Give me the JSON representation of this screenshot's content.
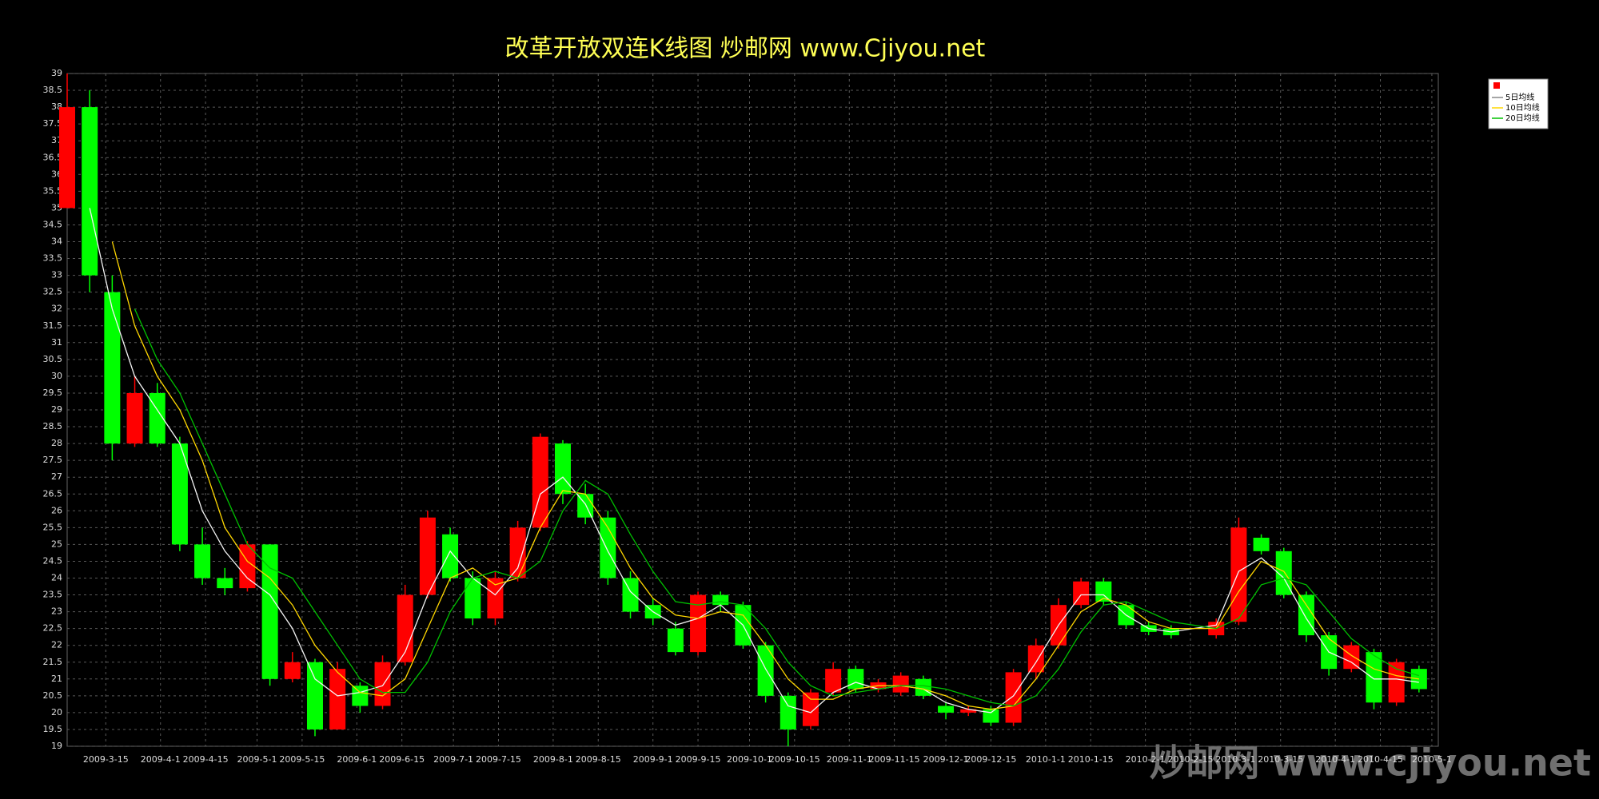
{
  "chart_data": {
    "type": "candlestick",
    "title": "改革开放双连K线图  炒邮网 www.Cjiyou.net",
    "watermark": "炒邮网 www.cjiyou.net",
    "x": [
      "2009-3-3",
      "2009-3-10",
      "2009-3-17",
      "2009-3-24",
      "2009-3-31",
      "2009-4-7",
      "2009-4-14",
      "2009-4-21",
      "2009-4-28",
      "2009-5-5",
      "2009-5-12",
      "2009-5-19",
      "2009-5-26",
      "2009-6-2",
      "2009-6-9",
      "2009-6-16",
      "2009-6-23",
      "2009-6-30",
      "2009-7-7",
      "2009-7-14",
      "2009-7-21",
      "2009-7-28",
      "2009-8-4",
      "2009-8-11",
      "2009-8-18",
      "2009-8-25",
      "2009-9-1",
      "2009-9-8",
      "2009-9-15",
      "2009-9-22",
      "2009-9-29",
      "2009-10-6",
      "2009-10-13",
      "2009-10-20",
      "2009-10-27",
      "2009-11-3",
      "2009-11-10",
      "2009-11-17",
      "2009-11-24",
      "2009-12-1",
      "2009-12-8",
      "2009-12-15",
      "2009-12-22",
      "2009-12-29",
      "2010-1-5",
      "2010-1-12",
      "2010-1-19",
      "2010-1-26",
      "2010-2-2",
      "2010-2-9",
      "2010-2-23",
      "2010-3-2",
      "2010-3-9",
      "2010-3-16",
      "2010-3-23",
      "2010-3-30",
      "2010-4-6",
      "2010-4-13",
      "2010-4-20",
      "2010-4-27"
    ],
    "open": [
      35,
      38,
      32.5,
      28,
      29.5,
      28,
      25,
      24,
      23.7,
      25,
      21,
      21.5,
      19.5,
      20.8,
      20.2,
      21.5,
      23.5,
      25.3,
      24,
      22.8,
      24,
      25.5,
      28,
      26.5,
      25.8,
      24,
      23.2,
      22.5,
      21.8,
      23.5,
      23.2,
      22,
      20.5,
      19.6,
      20.6,
      21.3,
      20.7,
      20.6,
      21,
      20.2,
      20,
      20.1,
      19.7,
      21.2,
      22,
      23.2,
      23.9,
      23.2,
      22.6,
      22.5,
      22.3,
      22.7,
      25.2,
      24.8,
      23.5,
      22.3,
      21.3,
      21.8,
      20.3,
      21.3
    ],
    "high": [
      39,
      38.5,
      33,
      30,
      29.8,
      28.2,
      25.5,
      24.3,
      25.1,
      25,
      21.8,
      21.6,
      21.5,
      20.9,
      21.7,
      23.8,
      26,
      25.5,
      24.2,
      24.2,
      25.7,
      28.3,
      28.1,
      26.8,
      26,
      24.2,
      23.4,
      22.7,
      23.6,
      23.6,
      23.3,
      22.1,
      20.6,
      20.7,
      21.5,
      21.4,
      21,
      21.2,
      21.1,
      20.3,
      20.2,
      20.2,
      21.3,
      22.2,
      23.4,
      24,
      24,
      23.3,
      22.7,
      22.6,
      22.8,
      25.8,
      25.3,
      24.9,
      23.6,
      22.4,
      22.1,
      21.9,
      21.6,
      21.4
    ],
    "low": [
      35,
      32.5,
      27.5,
      27.9,
      27.9,
      24.8,
      23.8,
      23.5,
      23.6,
      20.8,
      20.9,
      19.3,
      19.5,
      20,
      20.1,
      21.4,
      23.4,
      23.9,
      22.6,
      22.6,
      23.9,
      25.4,
      26.2,
      25.6,
      23.8,
      22.8,
      22.6,
      21.7,
      21.7,
      23,
      21.9,
      20.3,
      19,
      19.5,
      20.5,
      20.6,
      20.6,
      20.5,
      20.4,
      19.8,
      19.9,
      19.6,
      19.6,
      21,
      21.9,
      23.1,
      23.2,
      22.5,
      22.3,
      22.2,
      22.2,
      22.6,
      24.7,
      23.4,
      22.1,
      21.1,
      21.2,
      20.1,
      20.2,
      20.6
    ],
    "close": [
      38,
      33,
      28,
      29.5,
      28,
      25,
      24,
      23.7,
      25,
      21,
      21.5,
      19.5,
      21.3,
      20.2,
      21.5,
      23.5,
      25.8,
      24,
      22.8,
      24,
      25.5,
      28.2,
      26.5,
      25.8,
      24,
      23,
      22.8,
      21.8,
      23.5,
      23.2,
      22,
      20.5,
      19.5,
      20.6,
      21.3,
      20.7,
      20.9,
      21.1,
      20.5,
      20,
      20.1,
      19.7,
      21.2,
      22,
      23.2,
      23.9,
      23.3,
      22.6,
      22.4,
      22.3,
      22.7,
      25.5,
      24.8,
      23.5,
      22.3,
      21.3,
      22,
      20.3,
      21.5,
      20.7
    ],
    "up_color": "#ff0000",
    "down_color": "#00ff00",
    "series": [
      {
        "name": "5日均线",
        "color": "#f4f4f4",
        "values": [
          null,
          35,
          32,
          30,
          29,
          28,
          26,
          24.8,
          24,
          23.5,
          22.5,
          21,
          20.5,
          20.6,
          20.8,
          21.8,
          23.5,
          24.8,
          24,
          23.5,
          24.3,
          26.5,
          27,
          26.2,
          24.8,
          23.6,
          23,
          22.6,
          22.8,
          23.2,
          22.6,
          21.3,
          20.2,
          20,
          20.6,
          20.9,
          20.7,
          20.8,
          20.7,
          20.3,
          20.1,
          20,
          20.5,
          21.5,
          22.6,
          23.5,
          23.5,
          22.9,
          22.5,
          22.4,
          22.6,
          24.2,
          24.6,
          24,
          22.8,
          21.8,
          21.5,
          21,
          21,
          20.9
        ]
      },
      {
        "name": "10日均线",
        "color": "#ffd700",
        "values": [
          null,
          null,
          34,
          31.5,
          30,
          29,
          27.5,
          25.5,
          24.5,
          24,
          23.2,
          22,
          21.2,
          20.6,
          20.5,
          21,
          22.5,
          24,
          24.3,
          23.8,
          24,
          25.5,
          26.6,
          26.5,
          25.5,
          24.3,
          23.4,
          22.9,
          22.8,
          23,
          22.9,
          22,
          21,
          20.4,
          20.4,
          20.7,
          20.8,
          20.8,
          20.7,
          20.5,
          20.2,
          20.1,
          20.2,
          21,
          22,
          23,
          23.4,
          23.2,
          22.7,
          22.5,
          22.5,
          23.6,
          24.5,
          24.2,
          23.2,
          22.2,
          21.7,
          21.3,
          21.1,
          21
        ]
      },
      {
        "name": "20日均线",
        "color": "#00c000",
        "values": [
          null,
          null,
          null,
          32,
          30.5,
          29.5,
          28,
          26.5,
          25,
          24.3,
          24,
          23,
          22,
          21,
          20.6,
          20.6,
          21.5,
          23,
          24,
          24.2,
          24,
          24.5,
          26,
          26.9,
          26.5,
          25.3,
          24.2,
          23.3,
          23.2,
          23.3,
          23.2,
          22.5,
          21.5,
          20.8,
          20.5,
          20.6,
          20.7,
          20.8,
          20.8,
          20.7,
          20.5,
          20.3,
          20.2,
          20.5,
          21.3,
          22.4,
          23.2,
          23.3,
          23,
          22.7,
          22.5,
          22.8,
          23.8,
          24,
          23.8,
          23,
          22.2,
          21.7,
          21.3,
          21.1
        ]
      }
    ],
    "xlim": [
      "2009-3-3",
      "2010-5-3"
    ],
    "xticks": [
      "2009-3-15",
      "2009-4-1",
      "2009-4-15",
      "2009-5-1",
      "2009-5-15",
      "2009-6-1",
      "2009-6-15",
      "2009-7-1",
      "2009-7-15",
      "2009-8-1",
      "2009-8-15",
      "2009-9-1",
      "2009-9-15",
      "2009-10-1",
      "2009-10-15",
      "2009-11-1",
      "2009-11-15",
      "2009-12-1",
      "2009-12-15",
      "2010-1-1",
      "2010-1-15",
      "2010-2-1",
      "2010-2-15",
      "2010-3-1",
      "2010-3-15",
      "2010-4-1",
      "2010-4-15",
      "2010-5-1"
    ],
    "ylim": [
      19,
      39
    ],
    "yticks": [
      19,
      19.5,
      20,
      20.5,
      21,
      21.5,
      22,
      22.5,
      23,
      23.5,
      24,
      24.5,
      25,
      25.5,
      26,
      26.5,
      27,
      27.5,
      28,
      28.5,
      29,
      29.5,
      30,
      30.5,
      31,
      31.5,
      32,
      32.5,
      33,
      33.5,
      34,
      34.5,
      35,
      35.5,
      36,
      36.5,
      37,
      37.5,
      38,
      38.5,
      39
    ],
    "grid": true
  }
}
